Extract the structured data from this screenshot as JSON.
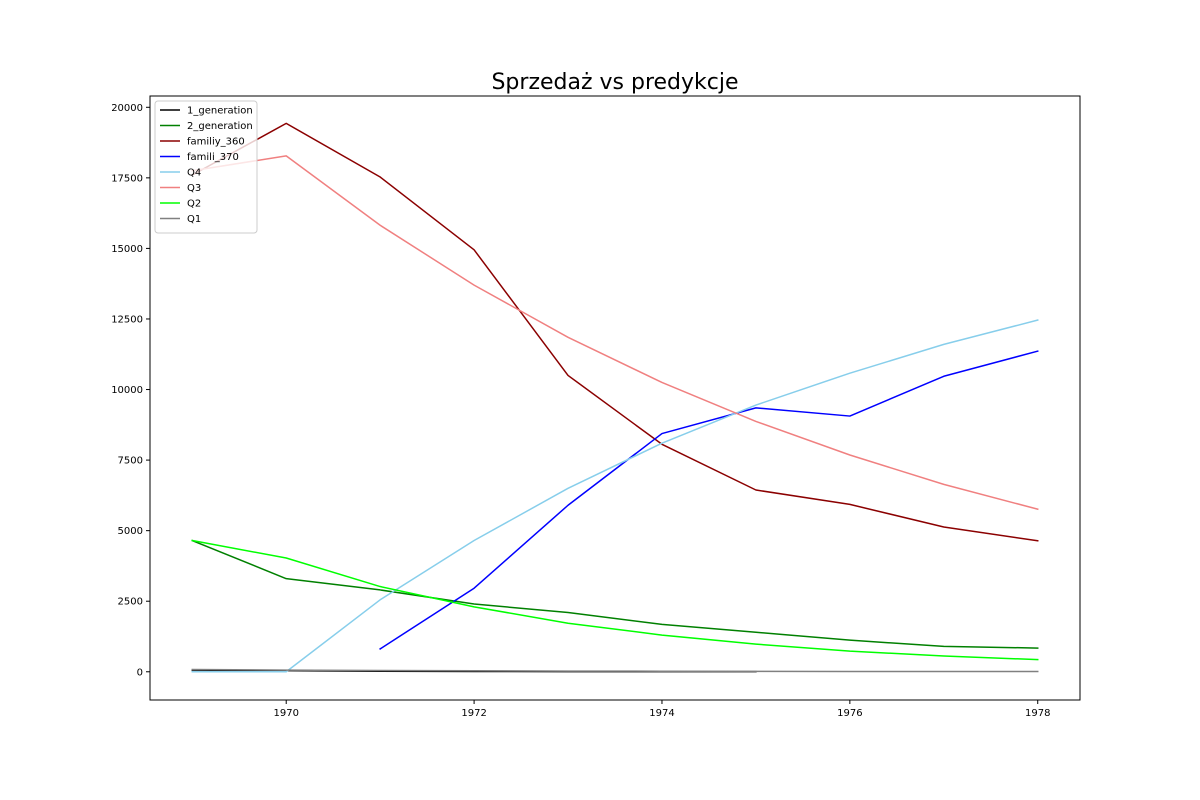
{
  "chart_data": {
    "type": "line",
    "title": "Sprzedaż vs predykcje",
    "xlabel": "",
    "ylabel": "",
    "xlim": [
      1968.55,
      1978.45
    ],
    "ylim": [
      -1000,
      20400
    ],
    "x_ticks": [
      1970,
      1972,
      1974,
      1976,
      1978
    ],
    "y_ticks": [
      0,
      2500,
      5000,
      7500,
      10000,
      12500,
      15000,
      17500,
      20000
    ],
    "grid": false,
    "legend_position": "top-left",
    "series": [
      {
        "name": "1_generation",
        "color": "#000000",
        "points": [
          [
            1969,
            60
          ],
          [
            1970,
            40
          ],
          [
            1971,
            20
          ],
          [
            1972,
            10
          ],
          [
            1973,
            5
          ],
          [
            1974,
            5
          ],
          [
            1975,
            5
          ]
        ]
      },
      {
        "name": "2_generation",
        "color": "#008000",
        "points": [
          [
            1969,
            4650
          ],
          [
            1970,
            3300
          ],
          [
            1971,
            2900
          ],
          [
            1972,
            2400
          ],
          [
            1973,
            2100
          ],
          [
            1974,
            1680
          ],
          [
            1975,
            1400
          ],
          [
            1976,
            1120
          ],
          [
            1977,
            900
          ],
          [
            1978,
            840
          ]
        ]
      },
      {
        "name": "familiy_360",
        "color": "#8b0000",
        "points": [
          [
            1969,
            17600
          ],
          [
            1970,
            19430
          ],
          [
            1971,
            17530
          ],
          [
            1972,
            14950
          ],
          [
            1973,
            10500
          ],
          [
            1974,
            8060
          ],
          [
            1975,
            6440
          ],
          [
            1976,
            5930
          ],
          [
            1977,
            5130
          ],
          [
            1978,
            4640
          ]
        ]
      },
      {
        "name": "famili_370",
        "color": "#0000ff",
        "points": [
          [
            1971,
            810
          ],
          [
            1972,
            2960
          ],
          [
            1973,
            5900
          ],
          [
            1974,
            8440
          ],
          [
            1975,
            9350
          ],
          [
            1976,
            9060
          ],
          [
            1977,
            10470
          ],
          [
            1978,
            11360
          ]
        ]
      },
      {
        "name": "Q4",
        "color": "#87ceeb",
        "points": [
          [
            1969,
            0
          ],
          [
            1970,
            0
          ],
          [
            1971,
            2550
          ],
          [
            1972,
            4650
          ],
          [
            1973,
            6500
          ],
          [
            1974,
            8100
          ],
          [
            1975,
            9450
          ],
          [
            1976,
            10580
          ],
          [
            1977,
            11600
          ],
          [
            1978,
            12460
          ]
        ]
      },
      {
        "name": "Q3",
        "color": "#f08080",
        "points": [
          [
            1969,
            17750
          ],
          [
            1970,
            18280
          ],
          [
            1971,
            15820
          ],
          [
            1972,
            13700
          ],
          [
            1973,
            11850
          ],
          [
            1974,
            10250
          ],
          [
            1975,
            8870
          ],
          [
            1976,
            7680
          ],
          [
            1977,
            6640
          ],
          [
            1978,
            5760
          ]
        ]
      },
      {
        "name": "Q2",
        "color": "#00ff00",
        "points": [
          [
            1969,
            4650
          ],
          [
            1970,
            4030
          ],
          [
            1971,
            3020
          ],
          [
            1972,
            2300
          ],
          [
            1973,
            1720
          ],
          [
            1974,
            1300
          ],
          [
            1975,
            980
          ],
          [
            1976,
            730
          ],
          [
            1977,
            560
          ],
          [
            1978,
            430
          ]
        ]
      },
      {
        "name": "Q1",
        "color": "#808080",
        "points": [
          [
            1969,
            80
          ],
          [
            1970,
            60
          ],
          [
            1971,
            45
          ],
          [
            1972,
            35
          ],
          [
            1973,
            25
          ],
          [
            1974,
            20
          ],
          [
            1975,
            15
          ],
          [
            1976,
            12
          ],
          [
            1977,
            10
          ],
          [
            1978,
            8
          ]
        ]
      }
    ]
  }
}
